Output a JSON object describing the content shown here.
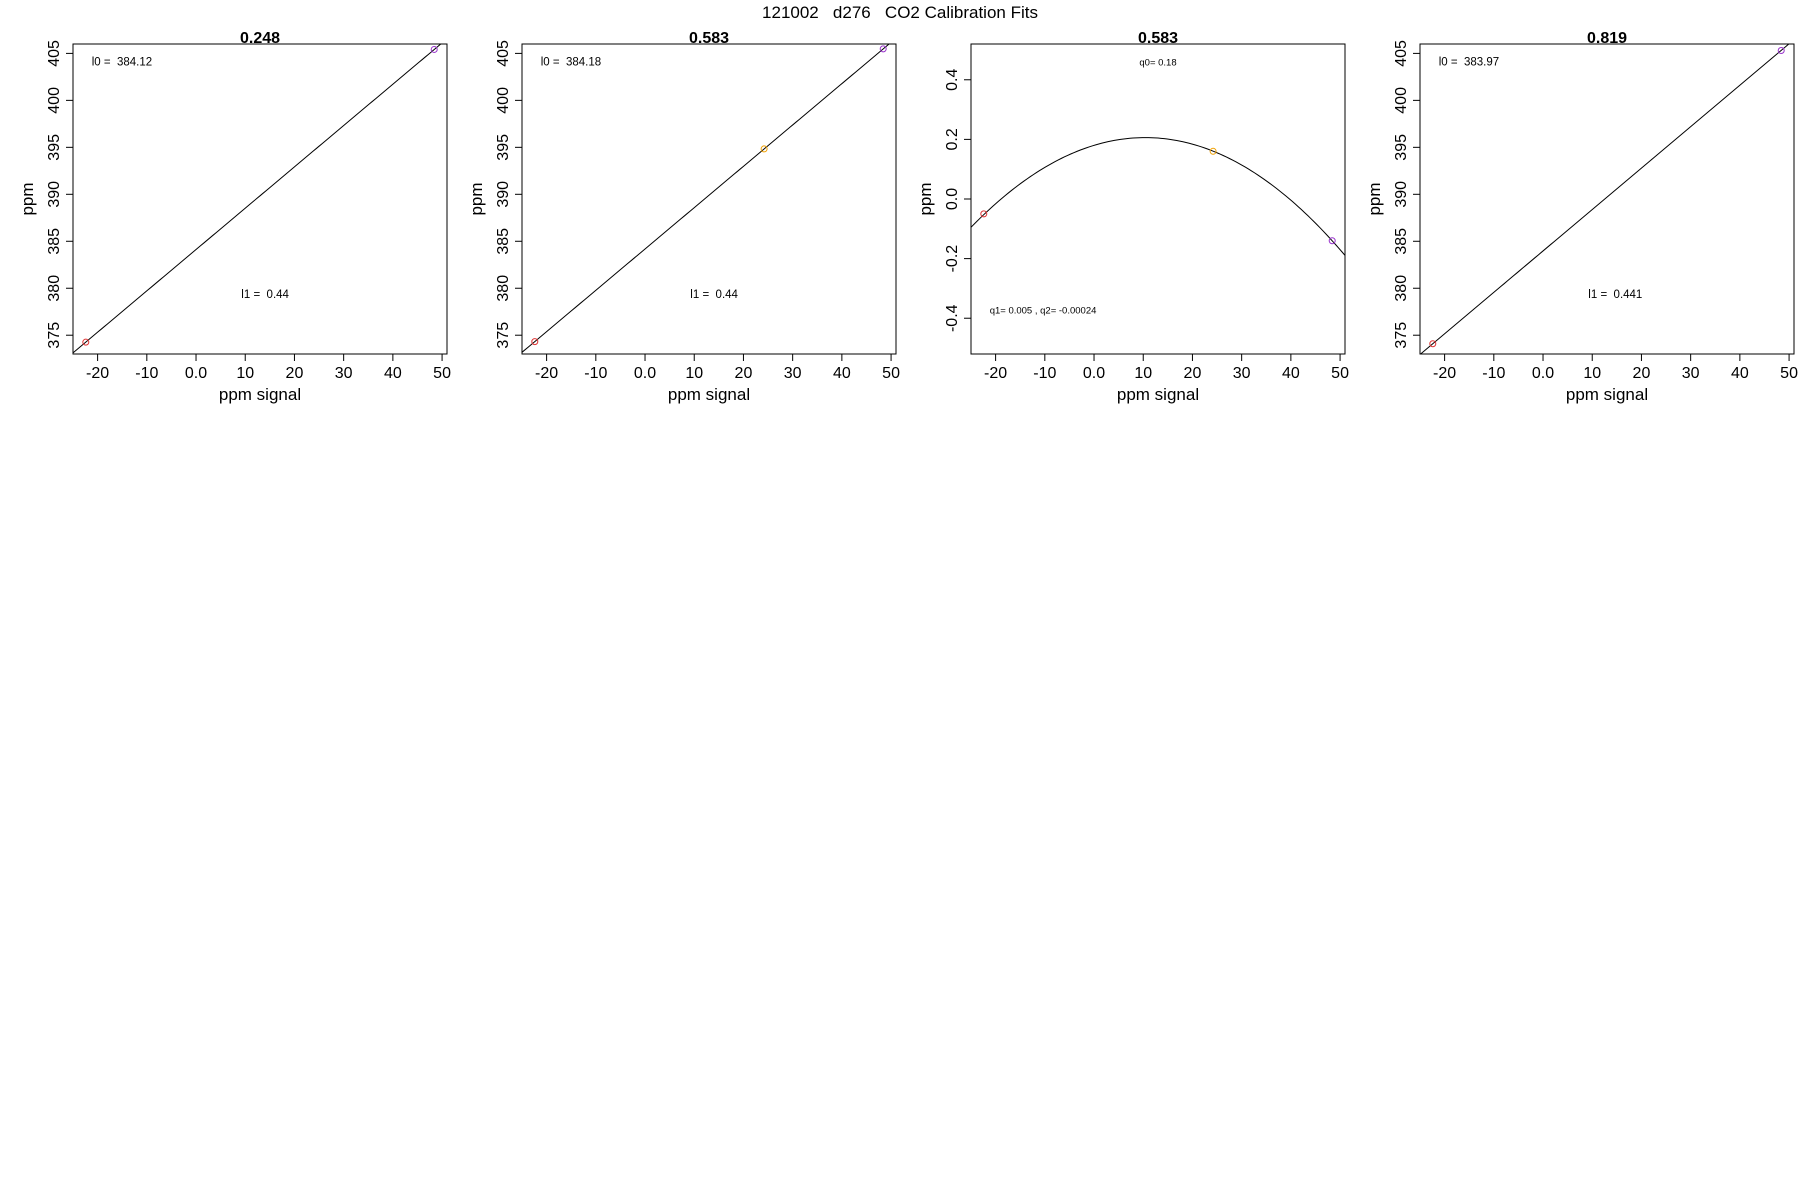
{
  "page_title": "121002   d276   CO2 Calibration Fits",
  "chart_data": [
    {
      "type": "scatter",
      "title": "0.248",
      "xlabel": "ppm signal",
      "ylabel": "ppm",
      "xlim": [
        -25,
        51
      ],
      "ylim": [
        373,
        406
      ],
      "xticks": [
        -20,
        -10,
        0,
        10,
        20,
        30,
        40,
        50
      ],
      "yticks": [
        375,
        380,
        385,
        390,
        395,
        400,
        405
      ],
      "fit": {
        "kind": "linear",
        "intercept": 384.12,
        "slope": 0.44
      },
      "points": [
        {
          "x": -22.4,
          "y": 374.26,
          "color": "#dd3333"
        },
        {
          "x": 48.4,
          "y": 405.42,
          "color": "#9933cc"
        }
      ],
      "annotations": [
        {
          "text": "l0 =  384.12"
        },
        {
          "text": "l1 =  0.44"
        }
      ]
    },
    {
      "type": "scatter",
      "title": "0.583",
      "xlabel": "ppm signal",
      "ylabel": "ppm",
      "xlim": [
        -25,
        51
      ],
      "ylim": [
        373,
        406
      ],
      "xticks": [
        -20,
        -10,
        0,
        10,
        20,
        30,
        40,
        50
      ],
      "yticks": [
        375,
        380,
        385,
        390,
        395,
        400,
        405
      ],
      "fit": {
        "kind": "linear",
        "intercept": 384.18,
        "slope": 0.44
      },
      "points": [
        {
          "x": -22.4,
          "y": 374.32,
          "color": "#dd3333"
        },
        {
          "x": 24.2,
          "y": 394.83,
          "color": "#f0a000"
        },
        {
          "x": 48.4,
          "y": 405.48,
          "color": "#9933cc"
        }
      ],
      "annotations": [
        {
          "text": "l0 =  384.18"
        },
        {
          "text": "l1 =  0.44"
        }
      ]
    },
    {
      "type": "scatter",
      "title": "0.583",
      "xlabel": "ppm signal",
      "ylabel": "ppm",
      "xlim": [
        -25,
        51
      ],
      "ylim": [
        -0.52,
        0.52
      ],
      "xticks": [
        -20,
        -10,
        0,
        10,
        20,
        30,
        40,
        50
      ],
      "yticks": [
        -0.4,
        -0.2,
        0.0,
        0.2,
        0.4
      ],
      "fit": {
        "kind": "quadratic",
        "q0": 0.18,
        "q1": 0.005,
        "q2": -0.00024
      },
      "points": [
        {
          "x": -22.4,
          "y": -0.05,
          "color": "#dd3333"
        },
        {
          "x": 24.2,
          "y": 0.16,
          "color": "#f0a000"
        },
        {
          "x": 48.4,
          "y": -0.14,
          "color": "#9933cc"
        }
      ],
      "annotations": [
        {
          "text": "q0= 0.18"
        },
        {
          "text": "q1= 0.005 , q2= -0.00024"
        }
      ]
    },
    {
      "type": "scatter",
      "title": "0.819",
      "xlabel": "ppm signal",
      "ylabel": "ppm",
      "xlim": [
        -25,
        51
      ],
      "ylim": [
        373,
        406
      ],
      "xticks": [
        -20,
        -10,
        0,
        10,
        20,
        30,
        40,
        50
      ],
      "yticks": [
        375,
        380,
        385,
        390,
        395,
        400,
        405
      ],
      "fit": {
        "kind": "linear",
        "intercept": 383.97,
        "slope": 0.441
      },
      "points": [
        {
          "x": -22.4,
          "y": 374.09,
          "color": "#dd3333"
        },
        {
          "x": 48.4,
          "y": 405.31,
          "color": "#9933cc"
        }
      ],
      "annotations": [
        {
          "text": "l0 =  383.97"
        },
        {
          "text": "l1 =  0.441"
        }
      ]
    }
  ]
}
